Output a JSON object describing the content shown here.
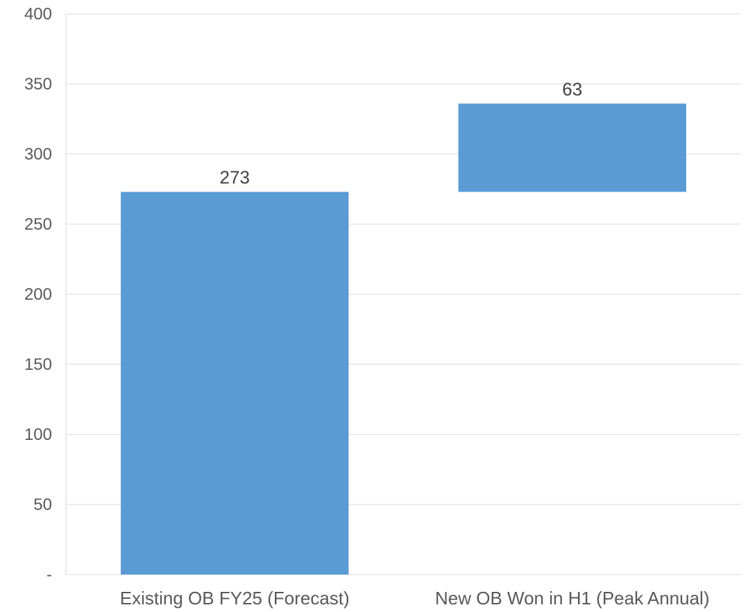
{
  "chart_data": {
    "type": "bar",
    "subtype": "waterfall",
    "categories": [
      "Existing OB FY25 (Forecast)",
      "New OB Won in H1 (Peak Annual)"
    ],
    "bars": [
      {
        "category": "Existing OB FY25 (Forecast)",
        "base": 0,
        "value": 273,
        "label": "273"
      },
      {
        "category": "New OB Won in H1 (Peak Annual)",
        "base": 273,
        "value": 63,
        "label": "63"
      }
    ],
    "ylim": [
      0,
      400
    ],
    "yticks": [
      0,
      50,
      100,
      150,
      200,
      250,
      300,
      350,
      400
    ],
    "ytick_labels": [
      "-",
      "50",
      "100",
      "150",
      "200",
      "250",
      "300",
      "350",
      "400"
    ],
    "grid": true,
    "legend": "none",
    "title": "",
    "xlabel": "",
    "ylabel": "",
    "colors": {
      "bar": "#5b9bd5",
      "grid": "#d9d9d9",
      "text": "#595959"
    }
  }
}
